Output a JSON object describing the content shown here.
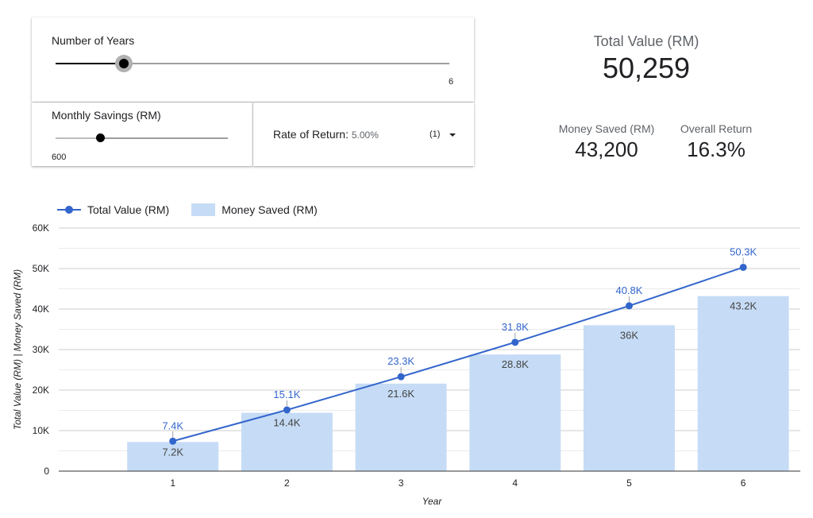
{
  "controls": {
    "years": {
      "label": "Number of Years",
      "value": "6",
      "fill_fraction": 0.17
    },
    "monthly": {
      "label": "Monthly Savings (RM)",
      "value": "600",
      "fill_fraction": 0.25
    },
    "rate": {
      "label": "Rate of Return",
      "value": "5.00%",
      "count": "(1)",
      "icon": "caret-down-icon"
    }
  },
  "kpis": {
    "total": {
      "label": "Total Value (RM)",
      "value": "50,259"
    },
    "saved": {
      "label": "Money Saved (RM)",
      "value": "43,200"
    },
    "return": {
      "label": "Overall Return",
      "value": "16.3%"
    }
  },
  "chart_data": {
    "type": "bar",
    "categories": [
      "1",
      "2",
      "3",
      "4",
      "5",
      "6"
    ],
    "series": [
      {
        "name": "Total Value (RM)",
        "type": "line",
        "color": "#3366cc",
        "values": [
          7400,
          15100,
          23300,
          31800,
          40800,
          50300
        ],
        "labels": [
          "7.4K",
          "15.1K",
          "23.3K",
          "31.8K",
          "40.8K",
          "50.3K"
        ]
      },
      {
        "name": "Money Saved (RM)",
        "type": "bar",
        "color": "#c6dcf6",
        "values": [
          7200,
          14400,
          21600,
          28800,
          36000,
          43200
        ],
        "labels": [
          "7.2K",
          "14.4K",
          "21.6K",
          "28.8K",
          "36K",
          "43.2K"
        ]
      }
    ],
    "yticks": [
      "0",
      "10K",
      "20K",
      "30K",
      "40K",
      "50K",
      "60K"
    ],
    "ylim": [
      0,
      60000
    ],
    "xlabel": "Year",
    "ylabel": "Total Value (RM) | Money Saved (RM)",
    "grid": true,
    "legend": "top-left"
  }
}
